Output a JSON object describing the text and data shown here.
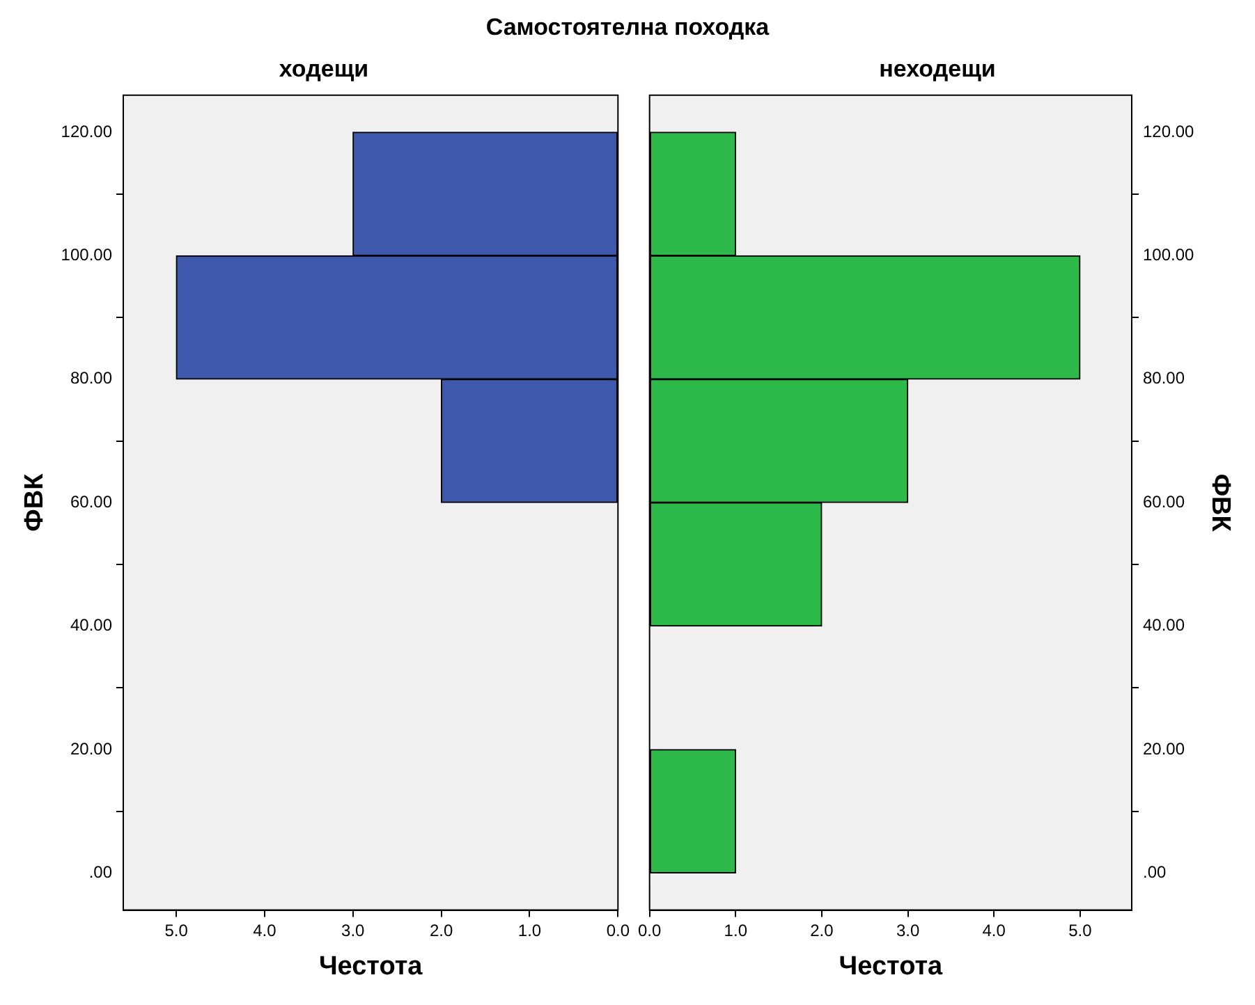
{
  "chart_data": [
    {
      "type": "histogram",
      "title": "Самостоятелна походка",
      "subtitle": "ходещи",
      "orientation": "horizontal",
      "xlabel": "Честота",
      "ylabel": "ФВК",
      "bins": [
        0,
        20,
        40,
        60,
        80,
        100,
        120
      ],
      "values": [
        0,
        0,
        0,
        2,
        5,
        3
      ],
      "color": "#3e59ab",
      "xlim": [
        5.6,
        0
      ],
      "xticks": [
        {
          "value": 5,
          "label": "5.0"
        },
        {
          "value": 4,
          "label": "4.0"
        },
        {
          "value": 3,
          "label": "3.0"
        },
        {
          "value": 2,
          "label": "2.0"
        },
        {
          "value": 1,
          "label": "1.0"
        },
        {
          "value": 0,
          "label": "0.0"
        }
      ],
      "ylim": [
        -6,
        126
      ],
      "yticks": [
        {
          "value": 0,
          "label": ".00"
        },
        {
          "value": 20,
          "label": "20.00"
        },
        {
          "value": 40,
          "label": "40.00"
        },
        {
          "value": 60,
          "label": "60.00"
        },
        {
          "value": 80,
          "label": "80.00"
        },
        {
          "value": 100,
          "label": "100.00"
        },
        {
          "value": 120,
          "label": "120.00"
        }
      ],
      "grid": false,
      "legend": false
    },
    {
      "type": "histogram",
      "subtitle": "неходещи",
      "orientation": "horizontal",
      "xlabel": "Честота",
      "ylabel": "ФВК",
      "bins": [
        0,
        20,
        40,
        60,
        80,
        100,
        120
      ],
      "values": [
        1,
        0,
        2,
        3,
        5,
        1
      ],
      "color": "#2db84a",
      "xlim": [
        0,
        5.6
      ],
      "xticks": [
        {
          "value": 0,
          "label": "0.0"
        },
        {
          "value": 1,
          "label": "1.0"
        },
        {
          "value": 2,
          "label": "2.0"
        },
        {
          "value": 3,
          "label": "3.0"
        },
        {
          "value": 4,
          "label": "4.0"
        },
        {
          "value": 5,
          "label": "5.0"
        }
      ],
      "ylim": [
        -6,
        126
      ],
      "yticks": [
        {
          "value": 0,
          "label": ".00"
        },
        {
          "value": 20,
          "label": "20.00"
        },
        {
          "value": 40,
          "label": "40.00"
        },
        {
          "value": 60,
          "label": "60.00"
        },
        {
          "value": 80,
          "label": "80.00"
        },
        {
          "value": 100,
          "label": "100.00"
        },
        {
          "value": 120,
          "label": "120.00"
        }
      ],
      "grid": false,
      "legend": false
    }
  ]
}
